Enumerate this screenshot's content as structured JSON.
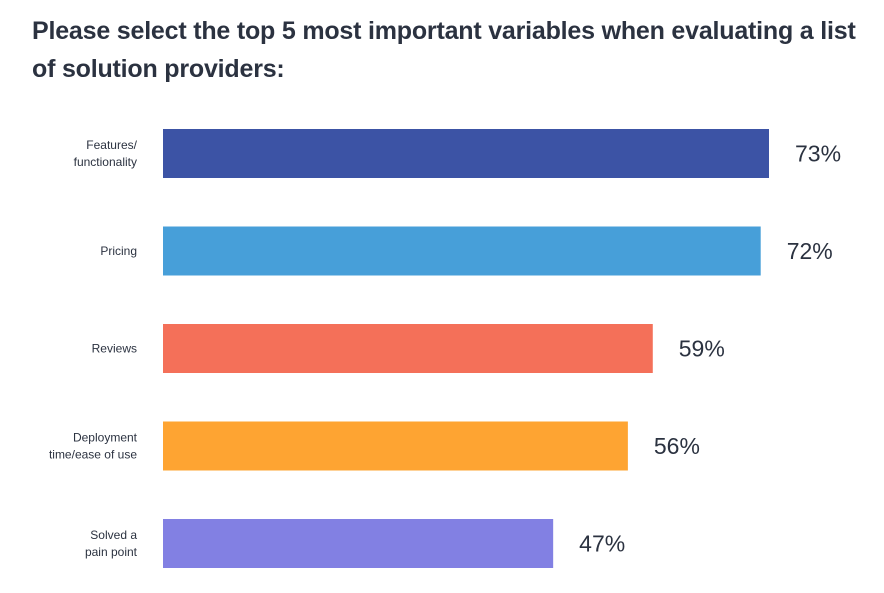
{
  "chart_data": {
    "type": "bar",
    "orientation": "horizontal",
    "title": "Please select the top 5 most important variables when evaluating a list of solution providers:",
    "categories": [
      [
        "Features/",
        "functionality"
      ],
      [
        "Pricing"
      ],
      [
        "Reviews"
      ],
      [
        "Deployment",
        "time/ease of use"
      ],
      [
        "Solved a",
        "pain point"
      ]
    ],
    "values": [
      73,
      72,
      59,
      56,
      47
    ],
    "value_labels": [
      "73%",
      "72%",
      "59%",
      "56%",
      "47%"
    ],
    "colors": [
      "#3c53a5",
      "#479fd9",
      "#f47059",
      "#fea432",
      "#8280e3"
    ],
    "xlim": [
      0,
      73
    ],
    "grid": false,
    "legend": "none"
  }
}
